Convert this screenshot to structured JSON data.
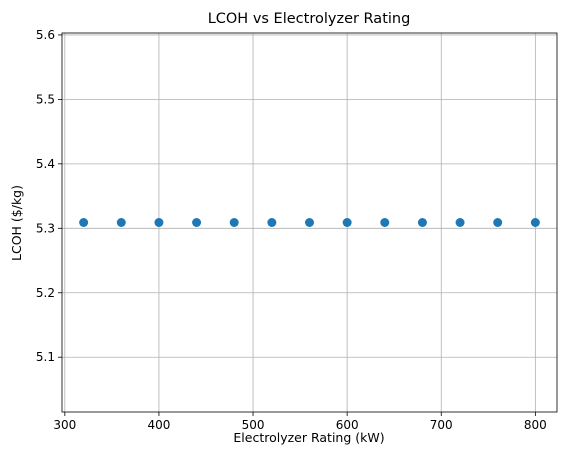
{
  "chart_data": {
    "type": "scatter",
    "title": "LCOH vs Electrolyzer Rating",
    "xlabel": "Electrolyzer Rating (kW)",
    "ylabel": "LCOH ($/kg)",
    "xlim": [
      297,
      823
    ],
    "ylim": [
      5.015,
      5.603
    ],
    "xticks": [
      "300",
      "400",
      "500",
      "600",
      "700",
      "800"
    ],
    "yticks": [
      "5.1",
      "5.2",
      "5.3",
      "5.4",
      "5.5",
      "5.6"
    ],
    "grid": true,
    "marker_color": "#1f77b4",
    "series": [
      {
        "x": [
          320,
          360,
          400,
          440,
          480,
          520,
          560,
          600,
          640,
          680,
          720,
          760,
          800
        ],
        "y": [
          5.309,
          5.309,
          5.309,
          5.309,
          5.309,
          5.309,
          5.309,
          5.309,
          5.309,
          5.309,
          5.309,
          5.309,
          5.309
        ]
      }
    ]
  }
}
